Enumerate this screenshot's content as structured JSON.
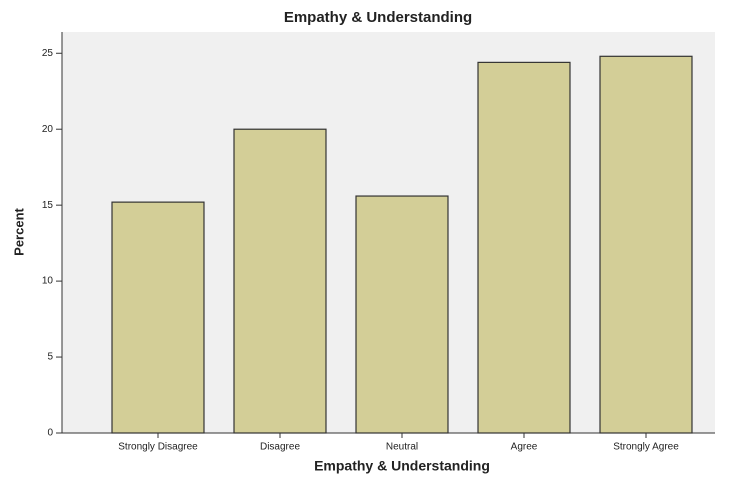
{
  "chart_data": {
    "type": "bar",
    "title": "Empathy & Understanding",
    "x_label": "Empathy & Understanding",
    "y_label": "Percent",
    "categories": [
      "Strongly Disagree",
      "Disagree",
      "Neutral",
      "Agree",
      "Strongly Agree"
    ],
    "values": [
      15.2,
      20.0,
      15.6,
      24.4,
      24.8
    ],
    "color": "#d3ce97",
    "ylim": [
      0,
      26.4
    ],
    "yticks": [
      0,
      5,
      10,
      15,
      20,
      25
    ],
    "grid": false
  }
}
